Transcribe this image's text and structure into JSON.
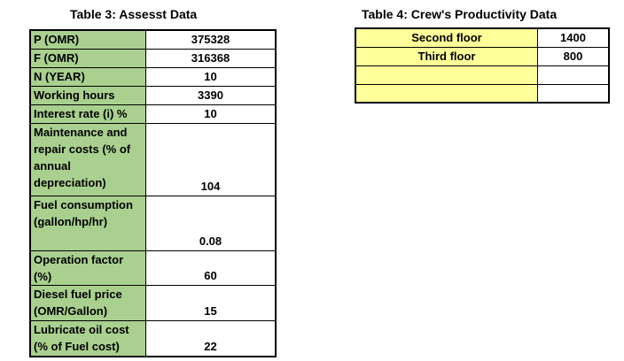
{
  "table3": {
    "title": "Table 3: Assesst Data",
    "colors": {
      "label_bg": "#A9D08E",
      "value_bg": "#FFFFFF",
      "border": "#000000",
      "text": "#000000"
    },
    "rows": [
      {
        "label": "P (OMR)",
        "value": "375328"
      },
      {
        "label": "F (OMR)",
        "value": "316368"
      },
      {
        "label": "N (YEAR)",
        "value": "10"
      },
      {
        "label": "Working hours",
        "value": "3390"
      },
      {
        "label": "Interest rate (i) %",
        "value": "10"
      },
      {
        "label": "Maintenance and\nrepair costs (% of\nannual\ndepreciation)",
        "value": "104"
      },
      {
        "label": "Fuel consumption\n(gallon/hp/hr)",
        "value": "0.08"
      },
      {
        "label": "Operation factor\n(%)",
        "value": "60"
      },
      {
        "label": "Diesel fuel price\n(OMR/Gallon)",
        "value": "15"
      },
      {
        "label": "Lubricate oil cost\n(% of Fuel cost)",
        "value": "22"
      }
    ]
  },
  "table4": {
    "title": "Table 4: Crew's Productivity Data",
    "colors": {
      "label_bg": "#FFFF99",
      "value_bg": "#FFFFFF",
      "border": "#000000",
      "text": "#000000"
    },
    "rows": [
      {
        "label": "Second floor",
        "value": "1400"
      },
      {
        "label": "Third floor",
        "value": "800"
      },
      {
        "label": "",
        "value": ""
      },
      {
        "label": "",
        "value": ""
      }
    ]
  }
}
